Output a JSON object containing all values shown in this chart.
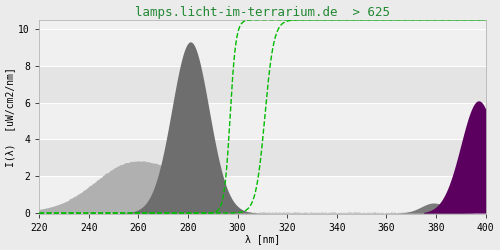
{
  "title": "lamps.licht-im-terrarium.de  > 625",
  "xlabel": "λ [nm]",
  "ylabel": "I(λ)  [uW/cm2/nm]",
  "xlim": [
    220,
    400
  ],
  "ylim": [
    -0.05,
    10.5
  ],
  "yticks": [
    0,
    2,
    4,
    6,
    8,
    10
  ],
  "xticks": [
    220,
    240,
    260,
    280,
    300,
    320,
    340,
    360,
    380,
    400
  ],
  "bg_color": "#ebebeb",
  "plot_bg_color": "#f0f0f0",
  "dark_gray": "#6e6e6e",
  "light_gray": "#b0b0b0",
  "noise_gray": "#999999",
  "purple_color": "#5c0060",
  "small_bump_gray": "#7a7a7a",
  "green_color": "#00bb00",
  "title_color": "#228833",
  "title_fontsize": 9,
  "axis_fontsize": 7,
  "label_fontsize": 7
}
